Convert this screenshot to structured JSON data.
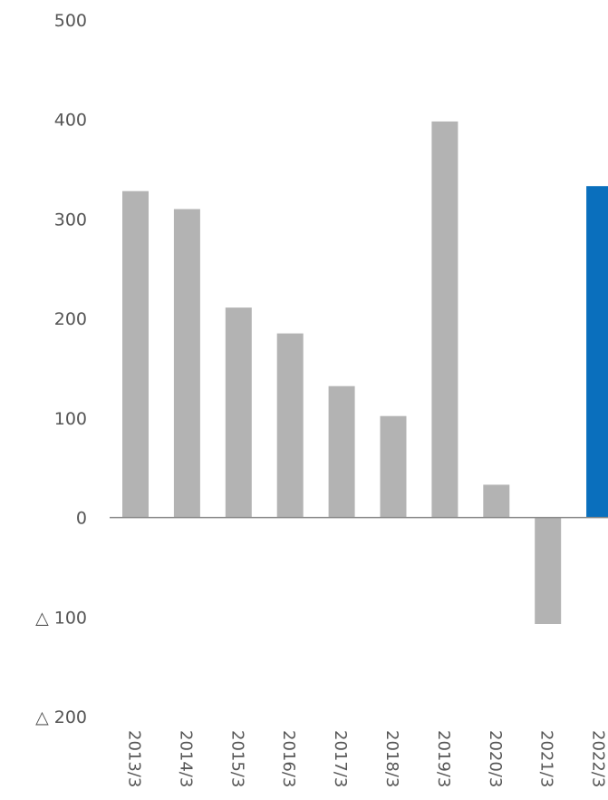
{
  "chart_data": {
    "type": "bar",
    "title": "",
    "xlabel": "",
    "ylabel": "",
    "ylim": [
      -200,
      500
    ],
    "yticks": [
      500,
      400,
      300,
      200,
      100,
      0,
      -100,
      -200
    ],
    "ytick_labels": [
      "500",
      "400",
      "300",
      "200",
      "100",
      "0",
      "△ 100",
      "△ 200"
    ],
    "categories": [
      "2013/3",
      "2014/3",
      "2015/3",
      "2016/3",
      "2017/3",
      "2018/3",
      "2019/3",
      "2020/3",
      "2021/3",
      "2022/3"
    ],
    "values": [
      328,
      310,
      211,
      185,
      132,
      102,
      398,
      33,
      -107,
      333
    ],
    "highlight_index": 9,
    "colors": {
      "bar": "#b3b3b3",
      "highlight": "#0a6fbd",
      "axis": "#8c8c8c",
      "text": "#555555"
    },
    "grid": false
  }
}
